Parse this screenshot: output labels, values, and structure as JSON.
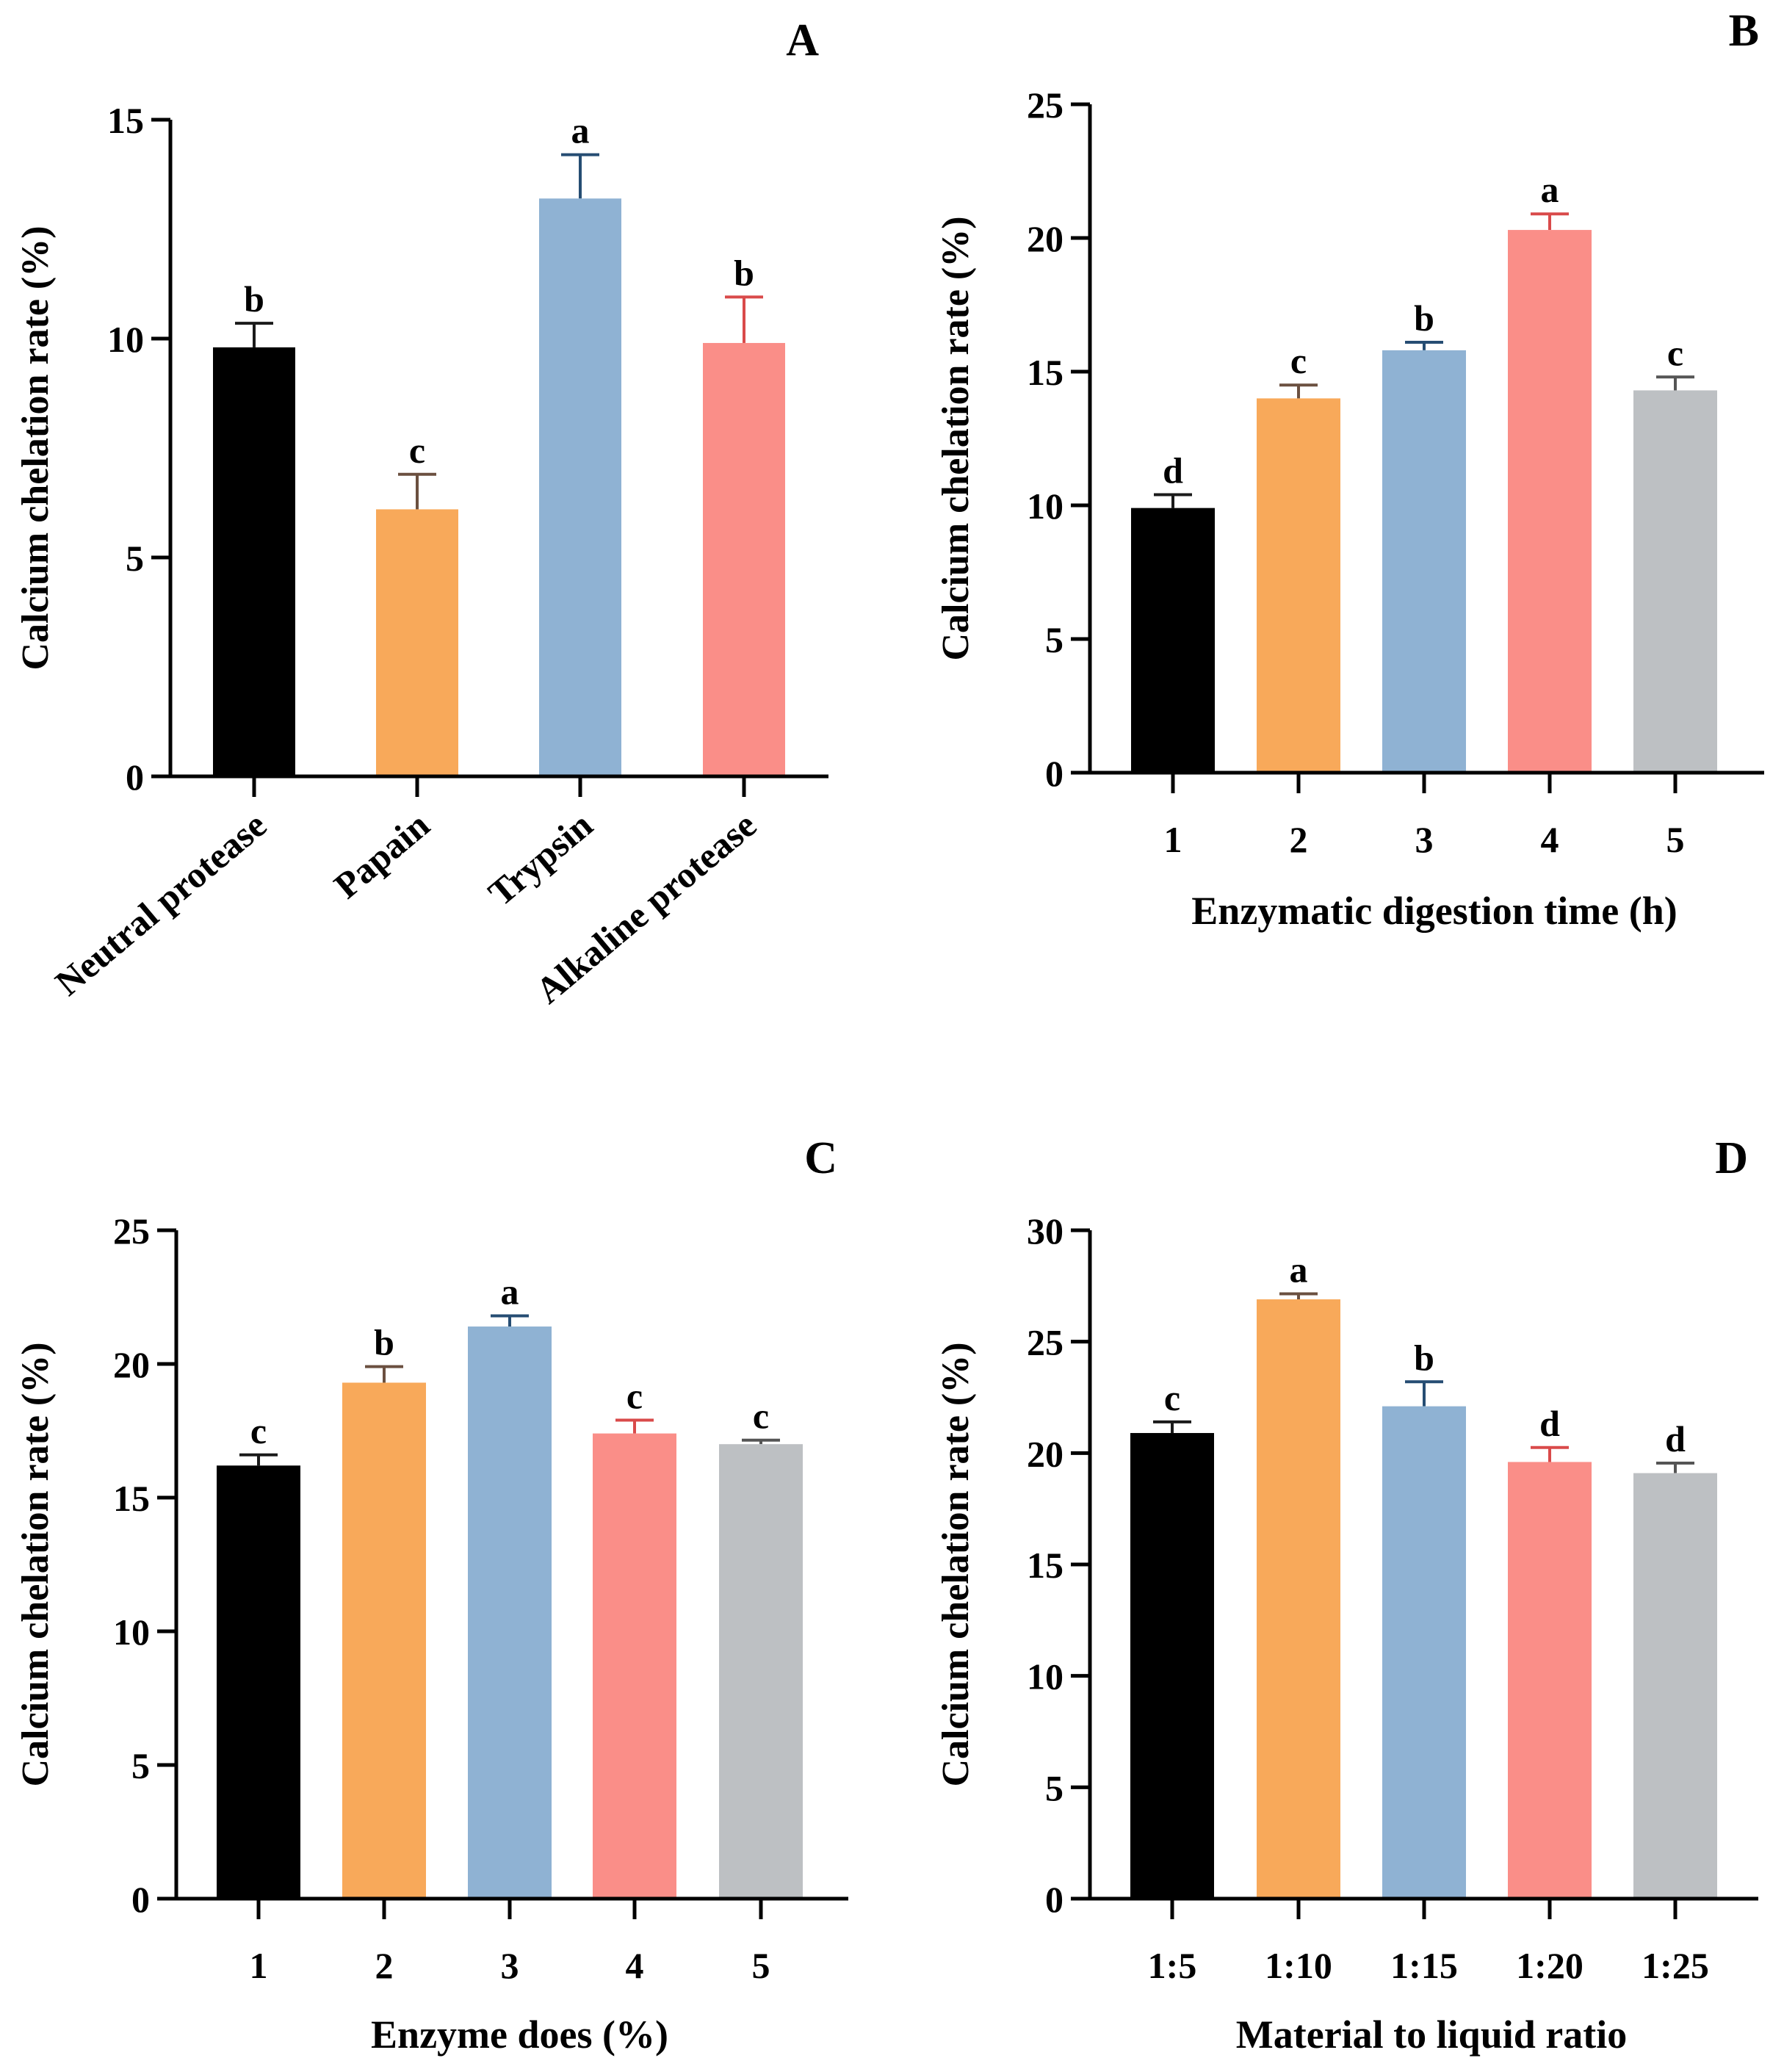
{
  "figure": {
    "panels": [
      "A",
      "B",
      "C",
      "D"
    ]
  },
  "chart_data": [
    {
      "panel": "A",
      "type": "bar",
      "title": "",
      "xlabel": "",
      "ylabel": "Calcium chelation rate (%)",
      "ylim": [
        0,
        15
      ],
      "yticks": [
        0,
        5,
        10,
        15
      ],
      "categories": [
        "Neutral protease",
        "Papain",
        "Trypsin",
        "Alkaline protease"
      ],
      "values": [
        9.8,
        6.1,
        13.2,
        9.9
      ],
      "errors": [
        0.55,
        0.8,
        1.0,
        1.05
      ],
      "significance": [
        "b",
        "c",
        "a",
        "b"
      ],
      "colors": [
        "#000000",
        "#f8a95a",
        "#8fb2d3",
        "#fa8e88"
      ],
      "error_colors": [
        "#1a1a1a",
        "#6b5040",
        "#264d73",
        "#d94a4a"
      ],
      "rotate_labels": true
    },
    {
      "panel": "B",
      "type": "bar",
      "title": "",
      "xlabel": "Enzymatic digestion time (h)",
      "ylabel": "Calcium chelation rate (%)",
      "ylim": [
        0,
        25
      ],
      "yticks": [
        0,
        5,
        10,
        15,
        20,
        25
      ],
      "categories": [
        "1",
        "2",
        "3",
        "4",
        "5"
      ],
      "values": [
        9.9,
        14.0,
        15.8,
        20.3,
        14.3
      ],
      "errors": [
        0.5,
        0.5,
        0.3,
        0.6,
        0.5
      ],
      "significance": [
        "d",
        "c",
        "b",
        "a",
        "c"
      ],
      "colors": [
        "#000000",
        "#f8a95a",
        "#8fb2d3",
        "#fa8e88",
        "#bdc0c3"
      ],
      "error_colors": [
        "#1a1a1a",
        "#6b5040",
        "#264d73",
        "#d94a4a",
        "#555555"
      ],
      "rotate_labels": false
    },
    {
      "panel": "C",
      "type": "bar",
      "title": "",
      "xlabel": "Enzyme does (%)",
      "ylabel": "Calcium chelation rate (%)",
      "ylim": [
        0,
        25
      ],
      "yticks": [
        0,
        5,
        10,
        15,
        20,
        25
      ],
      "categories": [
        "1",
        "2",
        "3",
        "4",
        "5"
      ],
      "values": [
        16.2,
        19.3,
        21.4,
        17.4,
        17.0
      ],
      "errors": [
        0.4,
        0.6,
        0.4,
        0.5,
        0.15
      ],
      "significance": [
        "c",
        "b",
        "a",
        "c",
        "c"
      ],
      "colors": [
        "#000000",
        "#f8a95a",
        "#8fb2d3",
        "#fa8e88",
        "#bdc0c3"
      ],
      "error_colors": [
        "#1a1a1a",
        "#6b5040",
        "#264d73",
        "#d94a4a",
        "#555555"
      ],
      "rotate_labels": false
    },
    {
      "panel": "D",
      "type": "bar",
      "title": "",
      "xlabel": "Material to liquid ratio",
      "ylabel": "Calcium chelation rate (%)",
      "ylim": [
        0,
        30
      ],
      "yticks": [
        0,
        5,
        10,
        15,
        20,
        25,
        30
      ],
      "categories": [
        "1:5",
        "1:10",
        "1:15",
        "1:20",
        "1:25"
      ],
      "values": [
        20.9,
        26.9,
        22.1,
        19.6,
        19.1
      ],
      "errors": [
        0.5,
        0.25,
        1.1,
        0.65,
        0.45
      ],
      "significance": [
        "c",
        "a",
        "b",
        "d",
        "d"
      ],
      "colors": [
        "#000000",
        "#f8a95a",
        "#8fb2d3",
        "#fa8e88",
        "#bdc0c3"
      ],
      "error_colors": [
        "#1a1a1a",
        "#6b5040",
        "#264d73",
        "#d94a4a",
        "#555555"
      ],
      "rotate_labels": false
    }
  ]
}
